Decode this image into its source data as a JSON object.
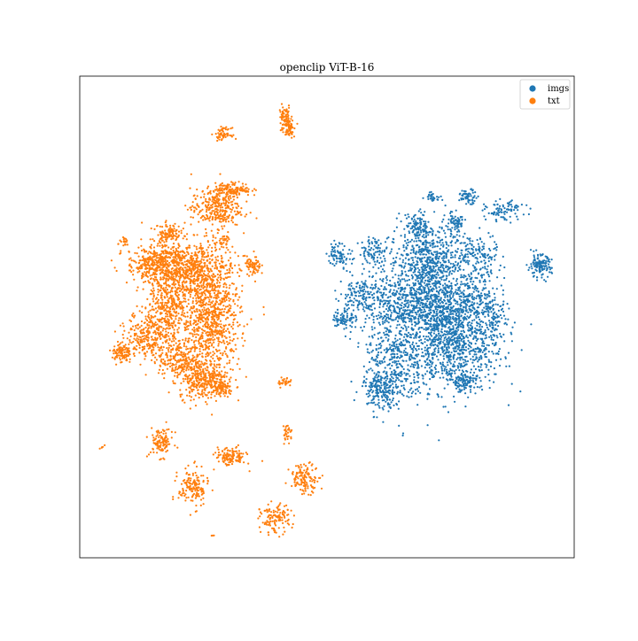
{
  "chart_data": {
    "type": "scatter",
    "title": "openclip ViT-B-16",
    "xlabel": "",
    "ylabel": "",
    "x_ticks": [],
    "y_ticks": [],
    "xlim": [
      0,
      100
    ],
    "ylim": [
      0,
      100
    ],
    "legend": {
      "location": "top-right",
      "entries": [
        {
          "label": "imgs",
          "color": "#1f77b4"
        },
        {
          "label": "txt",
          "color": "#ff7f0e"
        }
      ]
    },
    "series": [
      {
        "name": "imgs",
        "color": "#1f77b4",
        "clusters": [
          {
            "x": 75.5,
            "y": 44.5,
            "sx": 5.0,
            "sy": 5.0,
            "n": 950
          },
          {
            "x": 70.5,
            "y": 61.5,
            "sx": 4.0,
            "sy": 4.0,
            "n": 600
          },
          {
            "x": 72.0,
            "y": 53.0,
            "sx": 3.5,
            "sy": 5.0,
            "n": 520
          },
          {
            "x": 64.0,
            "y": 53.0,
            "sx": 4.5,
            "sy": 3.0,
            "n": 420
          },
          {
            "x": 63.5,
            "y": 41.0,
            "sx": 3.0,
            "sy": 5.0,
            "n": 360
          },
          {
            "x": 61.0,
            "y": 35.0,
            "sx": 2.0,
            "sy": 2.0,
            "n": 180
          },
          {
            "x": 80.0,
            "y": 54.0,
            "sx": 2.5,
            "sy": 3.0,
            "n": 200
          },
          {
            "x": 68.5,
            "y": 69.0,
            "sx": 1.2,
            "sy": 1.2,
            "n": 90
          },
          {
            "x": 76.0,
            "y": 69.5,
            "sx": 1.0,
            "sy": 1.0,
            "n": 70
          },
          {
            "x": 80.5,
            "y": 63.0,
            "sx": 2.0,
            "sy": 2.0,
            "n": 110
          },
          {
            "x": 86.0,
            "y": 72.0,
            "sx": 2.0,
            "sy": 1.0,
            "n": 90
          },
          {
            "x": 78.5,
            "y": 75.0,
            "sx": 1.0,
            "sy": 0.7,
            "n": 60
          },
          {
            "x": 71.5,
            "y": 75.0,
            "sx": 0.8,
            "sy": 0.5,
            "n": 30
          },
          {
            "x": 59.5,
            "y": 63.5,
            "sx": 1.5,
            "sy": 1.5,
            "n": 90
          },
          {
            "x": 52.5,
            "y": 63.0,
            "sx": 1.2,
            "sy": 1.2,
            "n": 80
          },
          {
            "x": 53.5,
            "y": 49.5,
            "sx": 1.2,
            "sy": 1.2,
            "n": 80
          },
          {
            "x": 56.5,
            "y": 55.0,
            "sx": 2.0,
            "sy": 1.5,
            "n": 90
          },
          {
            "x": 77.5,
            "y": 36.5,
            "sx": 1.2,
            "sy": 1.0,
            "n": 80
          },
          {
            "x": 93.0,
            "y": 60.5,
            "sx": 1.2,
            "sy": 1.2,
            "n": 130
          },
          {
            "x": 84.0,
            "y": 49.0,
            "sx": 1.0,
            "sy": 2.0,
            "n": 70
          }
        ]
      },
      {
        "name": "txt",
        "color": "#ff7f0e",
        "clusters": [
          {
            "x": 26.5,
            "y": 50.0,
            "sx": 3.0,
            "sy": 6.0,
            "n": 900
          },
          {
            "x": 22.0,
            "y": 60.0,
            "sx": 4.0,
            "sy": 3.0,
            "n": 600
          },
          {
            "x": 15.5,
            "y": 61.0,
            "sx": 3.0,
            "sy": 2.0,
            "n": 380
          },
          {
            "x": 14.5,
            "y": 46.5,
            "sx": 2.5,
            "sy": 2.5,
            "n": 320
          },
          {
            "x": 18.0,
            "y": 52.0,
            "sx": 2.0,
            "sy": 3.0,
            "n": 250
          },
          {
            "x": 20.0,
            "y": 41.0,
            "sx": 2.0,
            "sy": 2.0,
            "n": 200
          },
          {
            "x": 25.0,
            "y": 37.0,
            "sx": 2.5,
            "sy": 2.0,
            "n": 320
          },
          {
            "x": 27.5,
            "y": 72.5,
            "sx": 2.5,
            "sy": 2.0,
            "n": 300
          },
          {
            "x": 31.0,
            "y": 76.5,
            "sx": 1.8,
            "sy": 0.7,
            "n": 140
          },
          {
            "x": 18.0,
            "y": 67.5,
            "sx": 1.2,
            "sy": 1.0,
            "n": 100
          },
          {
            "x": 8.5,
            "y": 42.5,
            "sx": 1.0,
            "sy": 1.0,
            "n": 100
          },
          {
            "x": 35.0,
            "y": 60.5,
            "sx": 0.8,
            "sy": 1.0,
            "n": 70
          },
          {
            "x": 41.5,
            "y": 36.5,
            "sx": 0.7,
            "sy": 0.5,
            "n": 30
          },
          {
            "x": 29.5,
            "y": 66.0,
            "sx": 0.6,
            "sy": 0.6,
            "n": 30
          },
          {
            "x": 9.0,
            "y": 65.5,
            "sx": 0.6,
            "sy": 0.4,
            "n": 20
          },
          {
            "x": 29.0,
            "y": 35.0,
            "sx": 1.0,
            "sy": 0.8,
            "n": 70
          },
          {
            "x": 41.5,
            "y": 91.0,
            "sx": 0.6,
            "sy": 1.5,
            "n": 80
          },
          {
            "x": 42.5,
            "y": 89.5,
            "sx": 0.5,
            "sy": 1.0,
            "n": 50
          },
          {
            "x": 29.0,
            "y": 88.0,
            "sx": 0.8,
            "sy": 0.6,
            "n": 60
          },
          {
            "x": 16.5,
            "y": 24.0,
            "sx": 1.2,
            "sy": 1.5,
            "n": 110
          },
          {
            "x": 30.5,
            "y": 21.0,
            "sx": 1.5,
            "sy": 1.0,
            "n": 120
          },
          {
            "x": 23.0,
            "y": 14.5,
            "sx": 1.5,
            "sy": 2.0,
            "n": 150
          },
          {
            "x": 39.5,
            "y": 8.0,
            "sx": 1.5,
            "sy": 1.5,
            "n": 120
          },
          {
            "x": 45.5,
            "y": 16.5,
            "sx": 1.5,
            "sy": 1.5,
            "n": 130
          },
          {
            "x": 42.0,
            "y": 26.0,
            "sx": 0.5,
            "sy": 1.0,
            "n": 30
          },
          {
            "x": 4.5,
            "y": 23.0,
            "sx": 0.3,
            "sy": 0.2,
            "n": 5
          },
          {
            "x": 27.0,
            "y": 4.5,
            "sx": 0.3,
            "sy": 0.2,
            "n": 3
          }
        ]
      }
    ]
  }
}
